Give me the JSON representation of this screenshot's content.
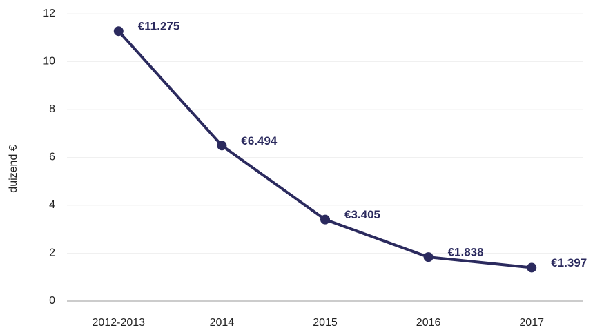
{
  "chart_data": {
    "type": "line",
    "y_label": "duizend €",
    "categories": [
      "2012-2013",
      "2014",
      "2015",
      "2016",
      "2017"
    ],
    "series": [
      {
        "name": "duizend €",
        "color": "#2b2a5e",
        "values": [
          11.275,
          6.494,
          3.405,
          1.838,
          1.397
        ],
        "value_labels": [
          "€11.275",
          "€6.494",
          "€3.405",
          "€1.838",
          "€1.397"
        ]
      }
    ],
    "ylim": [
      0,
      12
    ],
    "yticks": [
      0,
      2,
      4,
      6,
      8,
      10,
      12
    ],
    "grid": true
  }
}
